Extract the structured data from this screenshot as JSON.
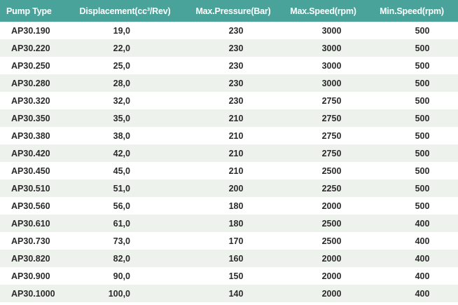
{
  "table": {
    "headers": [
      "Pump Type",
      "Displacement(cc³/Rev)",
      "Max.Pressure(Bar)",
      "Max.Speed(rpm)",
      "Min.Speed(rpm)"
    ],
    "rows": [
      [
        "AP30.190",
        "19,0",
        "230",
        "3000",
        "500"
      ],
      [
        "AP30.220",
        "22,0",
        "230",
        "3000",
        "500"
      ],
      [
        "AP30.250",
        "25,0",
        "230",
        "3000",
        "500"
      ],
      [
        "AP30.280",
        "28,0",
        "230",
        "3000",
        "500"
      ],
      [
        "AP30.320",
        "32,0",
        "230",
        "2750",
        "500"
      ],
      [
        "AP30.350",
        "35,0",
        "210",
        "2750",
        "500"
      ],
      [
        "AP30.380",
        "38,0",
        "210",
        "2750",
        "500"
      ],
      [
        "AP30.420",
        "42,0",
        "210",
        "2750",
        "500"
      ],
      [
        "AP30.450",
        "45,0",
        "210",
        "2500",
        "500"
      ],
      [
        "AP30.510",
        "51,0",
        "200",
        "2250",
        "500"
      ],
      [
        "AP30.560",
        "56,0",
        "180",
        "2000",
        "500"
      ],
      [
        "AP30.610",
        "61,0",
        "180",
        "2500",
        "400"
      ],
      [
        "AP30.730",
        "73,0",
        "170",
        "2500",
        "400"
      ],
      [
        "AP30.820",
        "82,0",
        "160",
        "2000",
        "400"
      ],
      [
        "AP30.900",
        "90,0",
        "150",
        "2000",
        "400"
      ],
      [
        "AP30.1000",
        "100,0",
        "140",
        "2000",
        "400"
      ]
    ]
  },
  "colors": {
    "header_background": "#4aa39a",
    "header_text": "#ffffff",
    "row_stripe": "#edf2ec",
    "row_background": "#ffffff",
    "cell_text": "#2a2a2a"
  }
}
